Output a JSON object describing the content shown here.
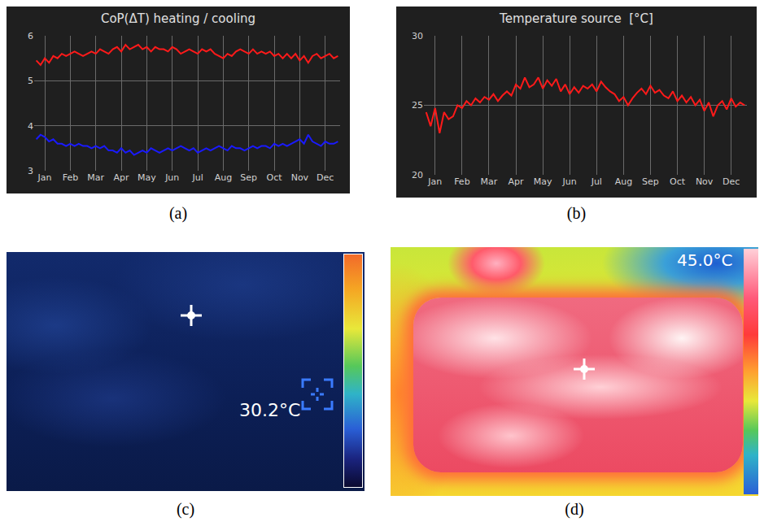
{
  "chart_data": [
    {
      "panel": "(a)",
      "type": "line",
      "title": "CoP(ΔT) heating / cooling",
      "categories": [
        null,
        null,
        "Jan",
        null,
        null,
        null,
        null,
        null,
        "Feb",
        null,
        null,
        null,
        null,
        null,
        "Mar",
        null,
        null,
        null,
        null,
        null,
        "Apr",
        null,
        null,
        null,
        null,
        null,
        "May",
        null,
        null,
        null,
        null,
        null,
        "Jun",
        null,
        null,
        null,
        null,
        null,
        "Jul",
        null,
        null,
        null,
        null,
        null,
        "Aug",
        null,
        null,
        null,
        null,
        null,
        "Sep",
        null,
        null,
        null,
        null,
        null,
        "Oct",
        null,
        null,
        null,
        null,
        null,
        "Nov",
        null,
        null,
        null,
        null,
        null,
        "Dec",
        null,
        null,
        null
      ],
      "series": [
        {
          "color": "#ff1a1a",
          "values": [
            5.45,
            5.35,
            5.5,
            5.4,
            5.55,
            5.5,
            5.6,
            5.55,
            5.6,
            5.65,
            5.6,
            5.55,
            5.6,
            5.65,
            5.6,
            5.7,
            5.65,
            5.6,
            5.7,
            5.75,
            5.65,
            5.8,
            5.7,
            5.75,
            5.8,
            5.7,
            5.75,
            5.65,
            5.75,
            5.7,
            5.7,
            5.65,
            5.75,
            5.7,
            5.6,
            5.65,
            5.7,
            5.65,
            5.6,
            5.7,
            5.65,
            5.7,
            5.6,
            5.55,
            5.5,
            5.6,
            5.55,
            5.65,
            5.7,
            5.65,
            5.6,
            5.7,
            5.6,
            5.65,
            5.6,
            5.65,
            5.55,
            5.6,
            5.5,
            5.6,
            5.5,
            5.6,
            5.45,
            5.55,
            5.4,
            5.55,
            5.6,
            5.5,
            5.55,
            5.6,
            5.5,
            5.55
          ]
        },
        {
          "color": "#1a1aff",
          "values": [
            3.7,
            3.8,
            3.75,
            3.65,
            3.7,
            3.6,
            3.6,
            3.55,
            3.6,
            3.55,
            3.6,
            3.55,
            3.55,
            3.5,
            3.55,
            3.5,
            3.55,
            3.45,
            3.45,
            3.4,
            3.5,
            3.4,
            3.45,
            3.35,
            3.4,
            3.45,
            3.4,
            3.5,
            3.45,
            3.4,
            3.45,
            3.5,
            3.45,
            3.5,
            3.55,
            3.5,
            3.45,
            3.5,
            3.4,
            3.45,
            3.5,
            3.45,
            3.5,
            3.55,
            3.5,
            3.45,
            3.55,
            3.5,
            3.5,
            3.45,
            3.5,
            3.55,
            3.5,
            3.55,
            3.55,
            3.5,
            3.6,
            3.55,
            3.6,
            3.55,
            3.6,
            3.65,
            3.7,
            3.6,
            3.8,
            3.65,
            3.6,
            3.55,
            3.65,
            3.6,
            3.6,
            3.65
          ]
        }
      ],
      "ylim": [
        3,
        6
      ],
      "yticks": [
        3,
        4,
        5,
        6
      ],
      "grid": true
    },
    {
      "panel": "(b)",
      "type": "line",
      "title": "Temperature source  [°C]",
      "categories": [
        null,
        null,
        "Jan",
        null,
        null,
        null,
        null,
        null,
        "Feb",
        null,
        null,
        null,
        null,
        null,
        "Mar",
        null,
        null,
        null,
        null,
        null,
        "Apr",
        null,
        null,
        null,
        null,
        null,
        "May",
        null,
        null,
        null,
        null,
        null,
        "Jun",
        null,
        null,
        null,
        null,
        null,
        "Jul",
        null,
        null,
        null,
        null,
        null,
        "Aug",
        null,
        null,
        null,
        null,
        null,
        "Sep",
        null,
        null,
        null,
        null,
        null,
        "Oct",
        null,
        null,
        null,
        null,
        null,
        "Nov",
        null,
        null,
        null,
        null,
        null,
        "Dec",
        null,
        null,
        null
      ],
      "series": [
        {
          "color": "#ff1a1a",
          "values": [
            24.5,
            23.5,
            24.8,
            23.0,
            24.5,
            24.0,
            24.2,
            25.0,
            24.8,
            25.3,
            25.0,
            25.5,
            25.2,
            25.6,
            25.4,
            25.8,
            25.3,
            25.7,
            26.0,
            25.7,
            26.5,
            26.2,
            27.0,
            26.3,
            26.5,
            27.0,
            26.2,
            26.8,
            26.4,
            26.9,
            26.0,
            26.5,
            25.8,
            26.3,
            25.9,
            26.4,
            26.2,
            26.5,
            26.0,
            26.7,
            26.3,
            26.0,
            25.8,
            25.3,
            25.6,
            25.0,
            25.5,
            25.9,
            26.2,
            25.8,
            26.4,
            25.9,
            26.1,
            25.7,
            25.5,
            26.0,
            25.3,
            25.7,
            25.2,
            25.6,
            25.0,
            25.4,
            24.6,
            25.2,
            24.2,
            25.0,
            25.3,
            24.7,
            25.5,
            24.9,
            25.2,
            25.0
          ]
        }
      ],
      "ylim": [
        20,
        30
      ],
      "yticks": [
        20,
        25,
        30
      ],
      "grid": true
    }
  ],
  "images": [
    {
      "panel": "(c)",
      "readout": "30.2°C"
    },
    {
      "panel": "(d)",
      "readout": "45.0°C"
    }
  ]
}
